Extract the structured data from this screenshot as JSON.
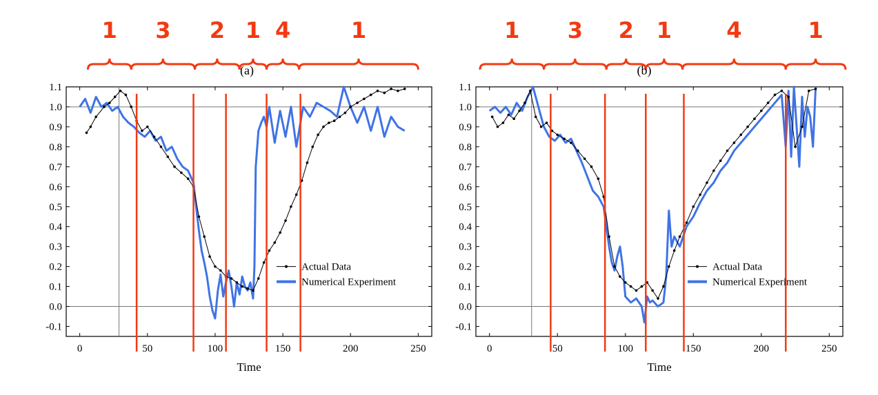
{
  "colors": {
    "phase": "#f23a12",
    "actual": "#000000",
    "numerical": "#3f73e6",
    "refline": "#777777",
    "frame": "#000000"
  },
  "chart_data": [
    {
      "type": "line",
      "panel_label": "(a)",
      "xlabel": "Time",
      "ylabel": "",
      "xlim": [
        -10,
        260
      ],
      "ylim": [
        -0.15,
        1.1
      ],
      "xticks": [
        0,
        50,
        100,
        150,
        200,
        250
      ],
      "yticks": [
        -0.1,
        0.0,
        0.1,
        0.2,
        0.3,
        0.4,
        0.5,
        0.6,
        0.7,
        0.8,
        0.9,
        1.0,
        1.1
      ],
      "xtick_labels": [
        "0",
        "50",
        "100",
        "150",
        "200",
        "250"
      ],
      "ytick_labels": [
        "-0.1",
        "0.0",
        "0.1",
        "0.2",
        "0.3",
        "0.4",
        "0.5",
        "0.6",
        "0.7",
        "0.8",
        "0.9",
        "1.0",
        "1.1"
      ],
      "hlines": [
        0.0,
        1.0
      ],
      "vline_thin": 29,
      "phase_boundaries": [
        42,
        84,
        108,
        138,
        163
      ],
      "phase_brackets": [
        {
          "label": "1",
          "x0": 6,
          "x1": 38
        },
        {
          "label": "3",
          "x0": 38,
          "x1": 85
        },
        {
          "label": "2",
          "x0": 85,
          "x1": 118
        },
        {
          "label": "1",
          "x0": 118,
          "x1": 138
        },
        {
          "label": "4",
          "x0": 138,
          "x1": 162
        },
        {
          "label": "1",
          "x0": 162,
          "x1": 250
        }
      ],
      "legend": {
        "position": "lower-right",
        "entries": [
          "Actual Data",
          "Numerical Experiment"
        ]
      },
      "series": [
        {
          "name": "Actual Data",
          "x": [
            5,
            8,
            12,
            18,
            22,
            26,
            30,
            34,
            38,
            42,
            46,
            50,
            55,
            60,
            65,
            70,
            75,
            80,
            84,
            88,
            92,
            96,
            100,
            104,
            108,
            112,
            116,
            120,
            124,
            128,
            132,
            136,
            140,
            144,
            148,
            152,
            156,
            160,
            164,
            168,
            172,
            176,
            180,
            184,
            188,
            192,
            196,
            200,
            205,
            210,
            215,
            220,
            225,
            230,
            235,
            240
          ],
          "y": [
            0.87,
            0.9,
            0.95,
            1.0,
            1.02,
            1.05,
            1.08,
            1.06,
            1.0,
            0.93,
            0.88,
            0.9,
            0.85,
            0.8,
            0.75,
            0.7,
            0.67,
            0.64,
            0.6,
            0.45,
            0.35,
            0.25,
            0.2,
            0.18,
            0.15,
            0.14,
            0.12,
            0.1,
            0.09,
            0.08,
            0.14,
            0.22,
            0.28,
            0.32,
            0.37,
            0.43,
            0.5,
            0.56,
            0.63,
            0.72,
            0.8,
            0.86,
            0.9,
            0.92,
            0.93,
            0.95,
            0.97,
            1.0,
            1.02,
            1.04,
            1.06,
            1.08,
            1.07,
            1.09,
            1.08,
            1.09
          ]
        },
        {
          "name": "Numerical Experiment",
          "x": [
            0,
            4,
            8,
            12,
            16,
            20,
            24,
            28,
            32,
            36,
            40,
            44,
            48,
            52,
            56,
            60,
            64,
            68,
            72,
            76,
            80,
            84,
            86,
            88,
            90,
            92,
            94,
            96,
            98,
            100,
            102,
            104,
            106,
            108,
            110,
            112,
            114,
            116,
            118,
            120,
            122,
            124,
            126,
            128,
            129,
            130,
            132,
            134,
            136,
            138,
            140,
            144,
            148,
            152,
            156,
            160,
            165,
            170,
            175,
            180,
            185,
            190,
            195,
            200,
            205,
            210,
            215,
            220,
            225,
            230,
            235,
            240
          ],
          "y": [
            1.0,
            1.04,
            0.97,
            1.05,
            1.0,
            1.02,
            0.98,
            1.0,
            0.95,
            0.92,
            0.9,
            0.87,
            0.85,
            0.88,
            0.83,
            0.85,
            0.78,
            0.8,
            0.74,
            0.7,
            0.68,
            0.62,
            0.5,
            0.38,
            0.28,
            0.22,
            0.15,
            0.05,
            -0.02,
            -0.06,
            0.08,
            0.16,
            0.05,
            0.12,
            0.18,
            0.1,
            0.0,
            0.12,
            0.06,
            0.15,
            0.1,
            0.08,
            0.12,
            0.04,
            0.2,
            0.7,
            0.88,
            0.92,
            0.95,
            0.9,
            1.0,
            0.82,
            0.98,
            0.85,
            1.0,
            0.8,
            1.0,
            0.95,
            1.02,
            1.0,
            0.98,
            0.95,
            1.1,
            1.0,
            0.92,
            1.0,
            0.88,
            1.0,
            0.85,
            0.95,
            0.9,
            0.88
          ]
        }
      ]
    },
    {
      "type": "line",
      "panel_label": "(b)",
      "xlabel": "Time",
      "ylabel": "",
      "xlim": [
        -10,
        260
      ],
      "ylim": [
        -0.15,
        1.1
      ],
      "xticks": [
        0,
        50,
        100,
        150,
        200,
        250
      ],
      "yticks": [
        -0.1,
        0.0,
        0.1,
        0.2,
        0.3,
        0.4,
        0.5,
        0.6,
        0.7,
        0.8,
        0.9,
        1.0,
        1.1
      ],
      "xtick_labels": [
        "0",
        "50",
        "100",
        "150",
        "200",
        "250"
      ],
      "ytick_labels": [
        "-0.1",
        "0.0",
        "0.1",
        "0.2",
        "0.3",
        "0.4",
        "0.5",
        "0.6",
        "0.7",
        "0.8",
        "0.9",
        "1.0",
        "1.1"
      ],
      "hlines": [
        0.0,
        1.0
      ],
      "vline_thin": 31,
      "phase_boundaries": [
        45,
        85,
        115,
        143,
        218
      ],
      "phase_brackets": [
        {
          "label": "1",
          "x0": -7,
          "x1": 40
        },
        {
          "label": "3",
          "x0": 40,
          "x1": 86
        },
        {
          "label": "2",
          "x0": 86,
          "x1": 115
        },
        {
          "label": "1",
          "x0": 115,
          "x1": 142
        },
        {
          "label": "4",
          "x0": 142,
          "x1": 218
        },
        {
          "label": "1",
          "x0": 218,
          "x1": 262
        }
      ],
      "legend": {
        "position": "lower-right",
        "entries": [
          "Actual Data",
          "Numerical Experiment"
        ]
      },
      "series": [
        {
          "name": "Actual Data",
          "x": [
            2,
            6,
            10,
            14,
            18,
            22,
            26,
            30,
            34,
            38,
            42,
            46,
            50,
            55,
            60,
            65,
            70,
            75,
            80,
            84,
            88,
            92,
            96,
            100,
            104,
            108,
            112,
            116,
            120,
            124,
            128,
            132,
            136,
            140,
            145,
            150,
            155,
            160,
            165,
            170,
            175,
            180,
            185,
            190,
            195,
            200,
            205,
            210,
            215,
            220,
            225,
            230,
            235,
            240
          ],
          "y": [
            0.95,
            0.9,
            0.92,
            0.96,
            0.94,
            0.98,
            1.02,
            1.08,
            0.95,
            0.9,
            0.92,
            0.88,
            0.86,
            0.84,
            0.82,
            0.78,
            0.74,
            0.7,
            0.64,
            0.55,
            0.35,
            0.2,
            0.15,
            0.12,
            0.1,
            0.08,
            0.1,
            0.12,
            0.08,
            0.04,
            0.1,
            0.2,
            0.28,
            0.35,
            0.42,
            0.5,
            0.56,
            0.62,
            0.68,
            0.73,
            0.78,
            0.82,
            0.86,
            0.9,
            0.94,
            0.98,
            1.02,
            1.06,
            1.08,
            1.05,
            0.8,
            0.9,
            1.08,
            1.09
          ]
        },
        {
          "name": "Numerical Experiment",
          "x": [
            0,
            4,
            8,
            12,
            16,
            20,
            24,
            28,
            32,
            36,
            40,
            44,
            48,
            52,
            56,
            60,
            64,
            68,
            72,
            76,
            80,
            84,
            86,
            88,
            90,
            92,
            94,
            96,
            98,
            100,
            104,
            108,
            112,
            114,
            116,
            118,
            120,
            124,
            128,
            130,
            132,
            134,
            136,
            140,
            145,
            150,
            155,
            160,
            165,
            170,
            175,
            180,
            185,
            190,
            195,
            200,
            205,
            210,
            215,
            218,
            220,
            222,
            224,
            226,
            228,
            230,
            232,
            234,
            236,
            238,
            240
          ],
          "y": [
            0.98,
            1.0,
            0.97,
            1.0,
            0.96,
            1.02,
            0.98,
            1.05,
            1.1,
            1.0,
            0.9,
            0.85,
            0.83,
            0.86,
            0.82,
            0.84,
            0.78,
            0.72,
            0.65,
            0.58,
            0.55,
            0.5,
            0.4,
            0.3,
            0.22,
            0.18,
            0.25,
            0.3,
            0.2,
            0.05,
            0.02,
            0.04,
            0.0,
            -0.08,
            0.05,
            0.02,
            0.03,
            0.0,
            0.02,
            0.15,
            0.48,
            0.3,
            0.35,
            0.3,
            0.4,
            0.45,
            0.52,
            0.58,
            0.62,
            0.68,
            0.72,
            0.78,
            0.82,
            0.86,
            0.9,
            0.94,
            0.98,
            1.02,
            1.06,
            0.8,
            1.08,
            0.75,
            1.1,
            0.9,
            0.7,
            1.05,
            0.85,
            1.0,
            0.95,
            0.8,
            1.1
          ]
        }
      ]
    }
  ]
}
